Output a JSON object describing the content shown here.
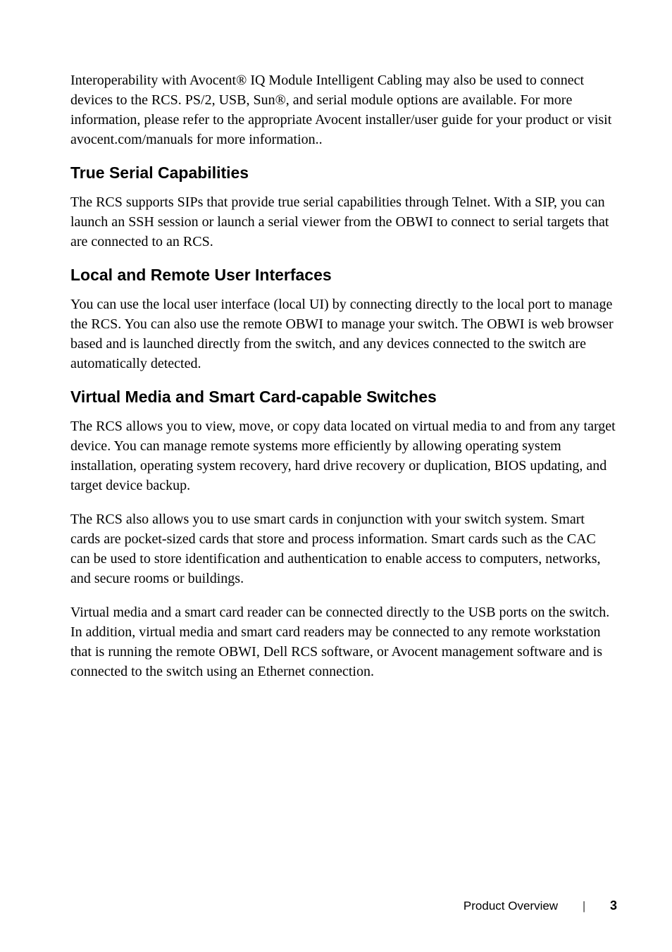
{
  "paragraphs": {
    "intro": "Interoperability with Avocent® IQ Module Intelligent Cabling may also be used to connect devices to the RCS. PS/2, USB, Sun®, and serial module options are available. For more information, please refer to the appropriate Avocent installer/user guide for your product or visit avocent.com/manuals for more information..",
    "true_serial": "The RCS supports SIPs that provide true serial capabilities through Telnet. With a SIP, you can launch an SSH session or launch a serial viewer from the OBWI to connect to serial targets that are connected to an RCS.",
    "local_remote": "You can use the local user interface (local UI) by connecting directly to the local port to manage the RCS. You can also use the remote OBWI to manage your switch. The OBWI is web browser based and is launched directly from the switch, and any devices connected to the switch are automatically detected.",
    "virtual_media_1": "The RCS allows you to view, move, or copy data located on virtual media to and from any target device. You can manage remote systems more efficiently by allowing operating system installation, operating system recovery, hard drive recovery or duplication, BIOS updating, and target device backup.",
    "virtual_media_2": "The RCS also allows you to use smart cards in conjunction with your switch system. Smart cards are pocket-sized cards that store and process information. Smart cards such as the CAC can be used to store identification and authentication to enable access to computers, networks, and secure rooms or buildings.",
    "virtual_media_3": "Virtual media and a smart card reader can be connected directly to the USB ports on the switch. In addition, virtual media and smart card readers may be connected to any remote workstation that is running the remote OBWI, Dell RCS software, or Avocent management software and is connected to the switch using an Ethernet connection."
  },
  "headings": {
    "true_serial": "True Serial Capabilities",
    "local_remote": "Local and Remote User Interfaces",
    "virtual_media": "Virtual Media and Smart Card-capable Switches"
  },
  "footer": {
    "section": "Product Overview",
    "page": "3"
  }
}
